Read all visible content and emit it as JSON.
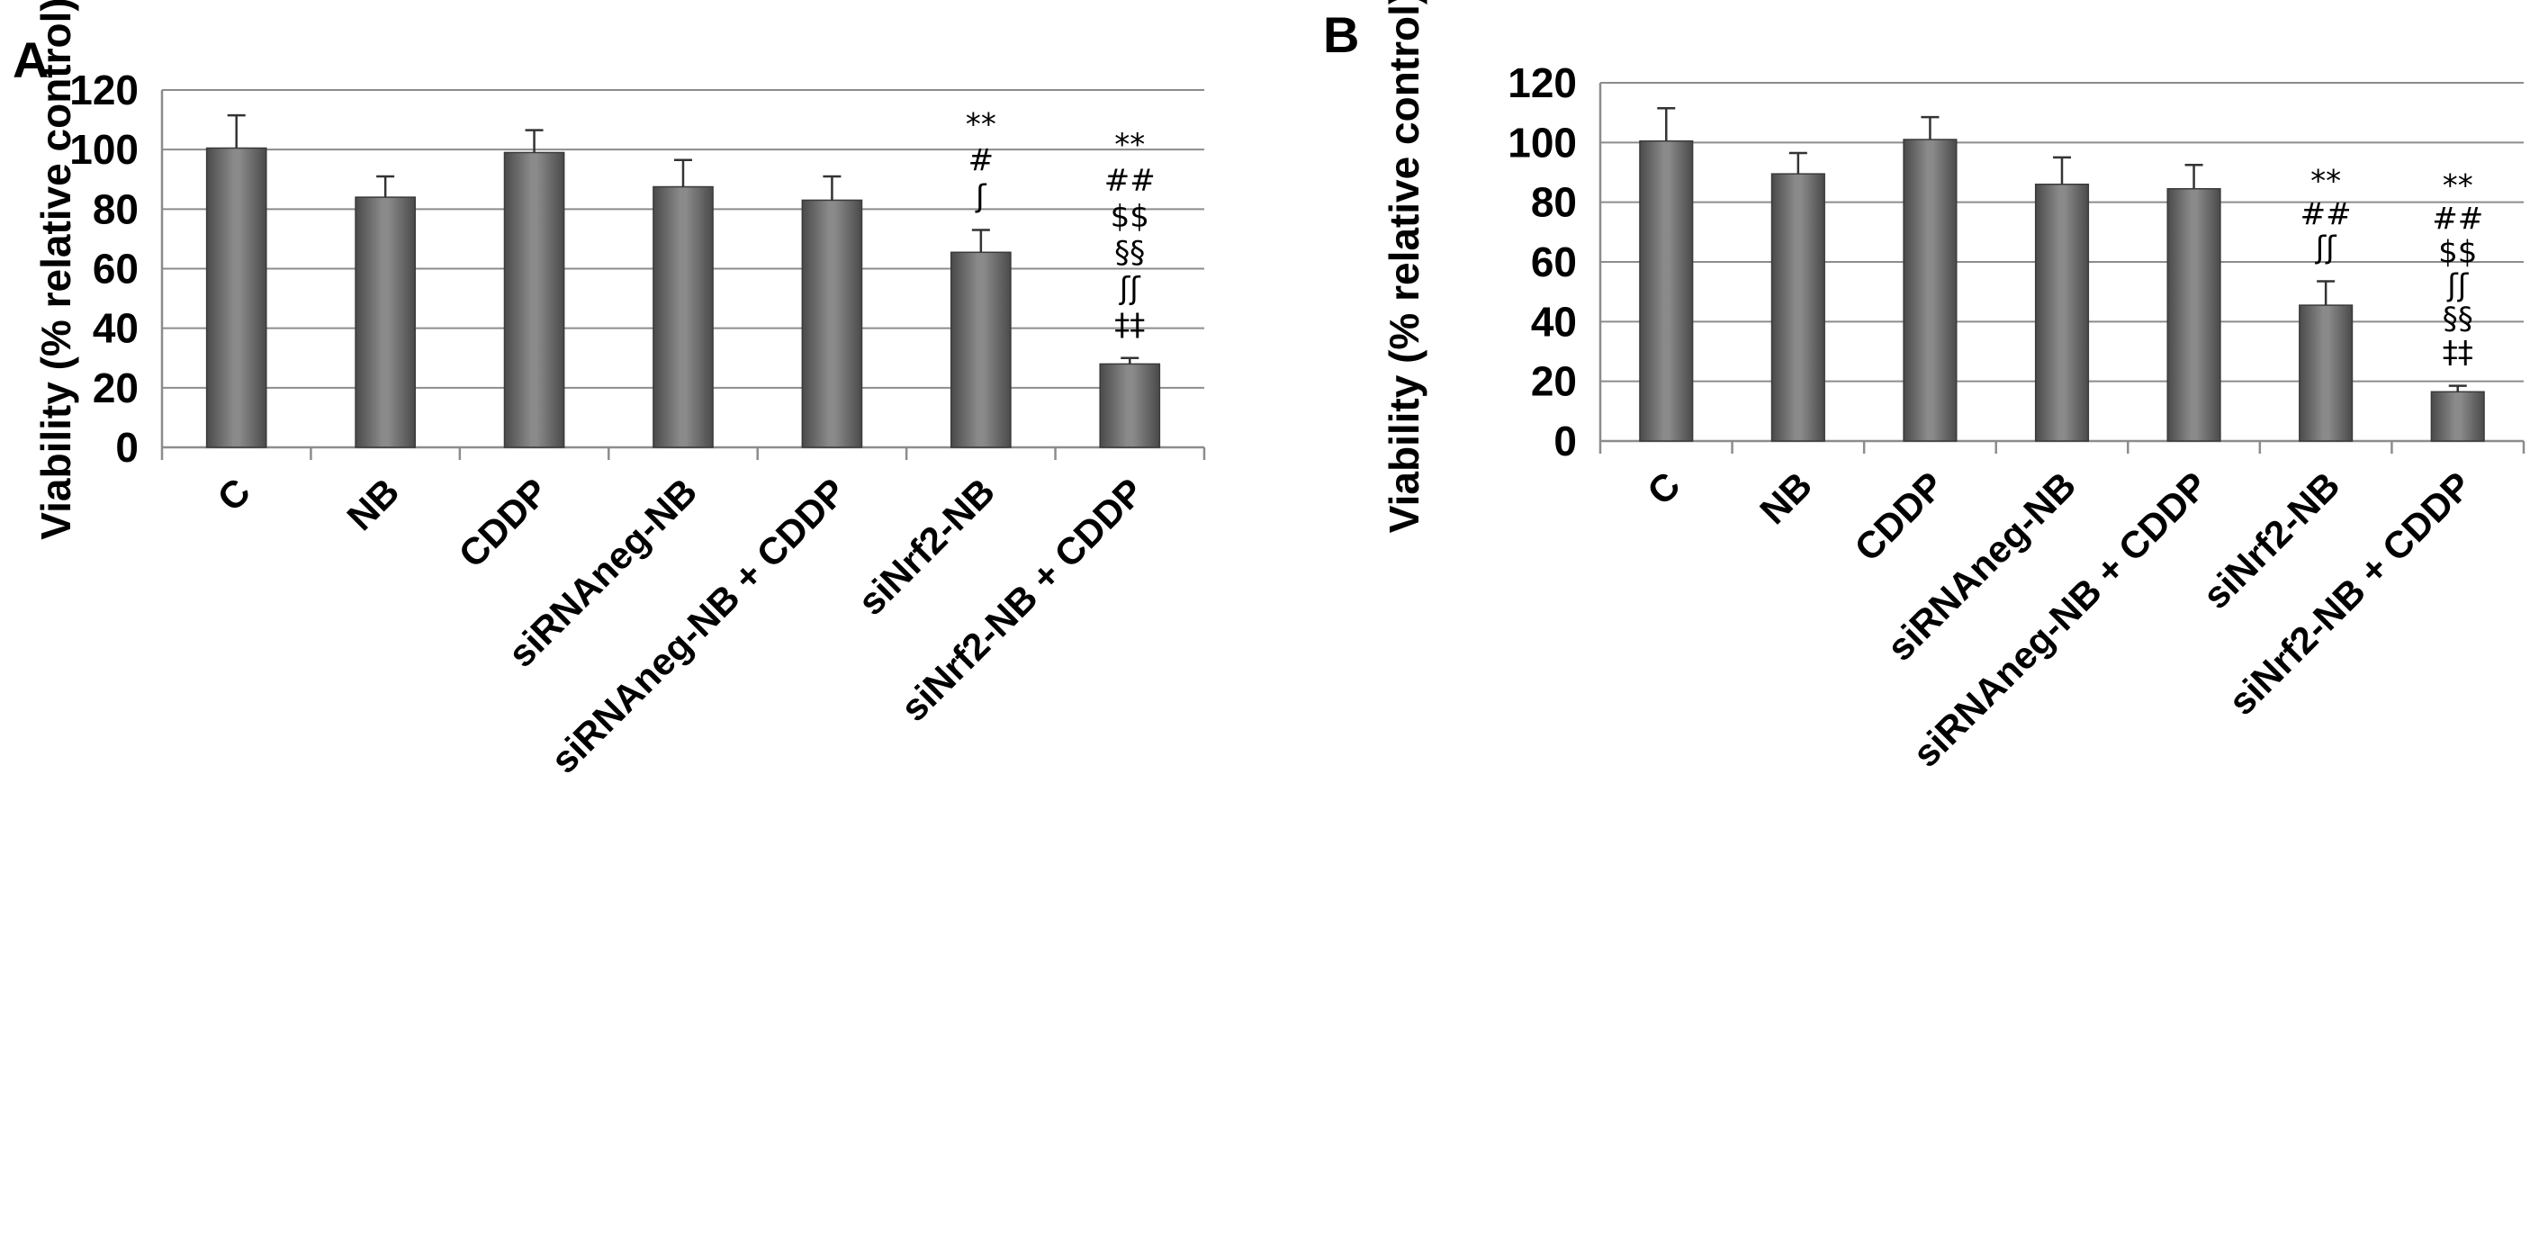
{
  "chart_data": [
    {
      "panel": "A",
      "type": "bar",
      "ylabel": "Viability (% relative control)",
      "ylim": [
        0,
        120
      ],
      "yticks": [
        "0",
        "20",
        "40",
        "60",
        "80",
        "100",
        "120"
      ],
      "categories": [
        "C",
        "NB",
        "CDDP",
        "siRNAneg-NB",
        "siRNAneg-NB + CDDP",
        "siNrf2-NB",
        "siNrf2-NB + CDDP"
      ],
      "values": [
        100.5,
        84,
        99,
        87.5,
        83,
        65.5,
        28
      ],
      "errors": [
        11,
        7,
        7.5,
        9,
        8,
        7.5,
        2
      ],
      "annotations": [
        [],
        [],
        [],
        [],
        [],
        [
          "**",
          "#",
          "ʃ"
        ],
        [
          "**",
          "##",
          "$$",
          "§§",
          "ʃʃ",
          "‡‡"
        ]
      ],
      "grid": true
    },
    {
      "panel": "B",
      "type": "bar",
      "ylabel": "Viability (% relative control)",
      "ylim": [
        0,
        120
      ],
      "yticks": [
        "0",
        "20",
        "40",
        "60",
        "80",
        "100",
        "120"
      ],
      "categories": [
        "C",
        "NB",
        "CDDP",
        "siRNAneg-NB",
        "siRNAneg-NB + CDDP",
        "siNrf2-NB",
        "siNrf2-NB + CDDP"
      ],
      "values": [
        100.5,
        89.5,
        101,
        86,
        84.5,
        45.5,
        16.5
      ],
      "errors": [
        11,
        7,
        7.5,
        9,
        8,
        8,
        2
      ],
      "annotations": [
        [],
        [],
        [],
        [],
        [],
        [
          "**",
          "##",
          "ʃʃ"
        ],
        [
          "**",
          "##",
          "$$",
          "ʃʃ",
          "§§",
          "‡‡"
        ]
      ],
      "grid": true
    }
  ]
}
